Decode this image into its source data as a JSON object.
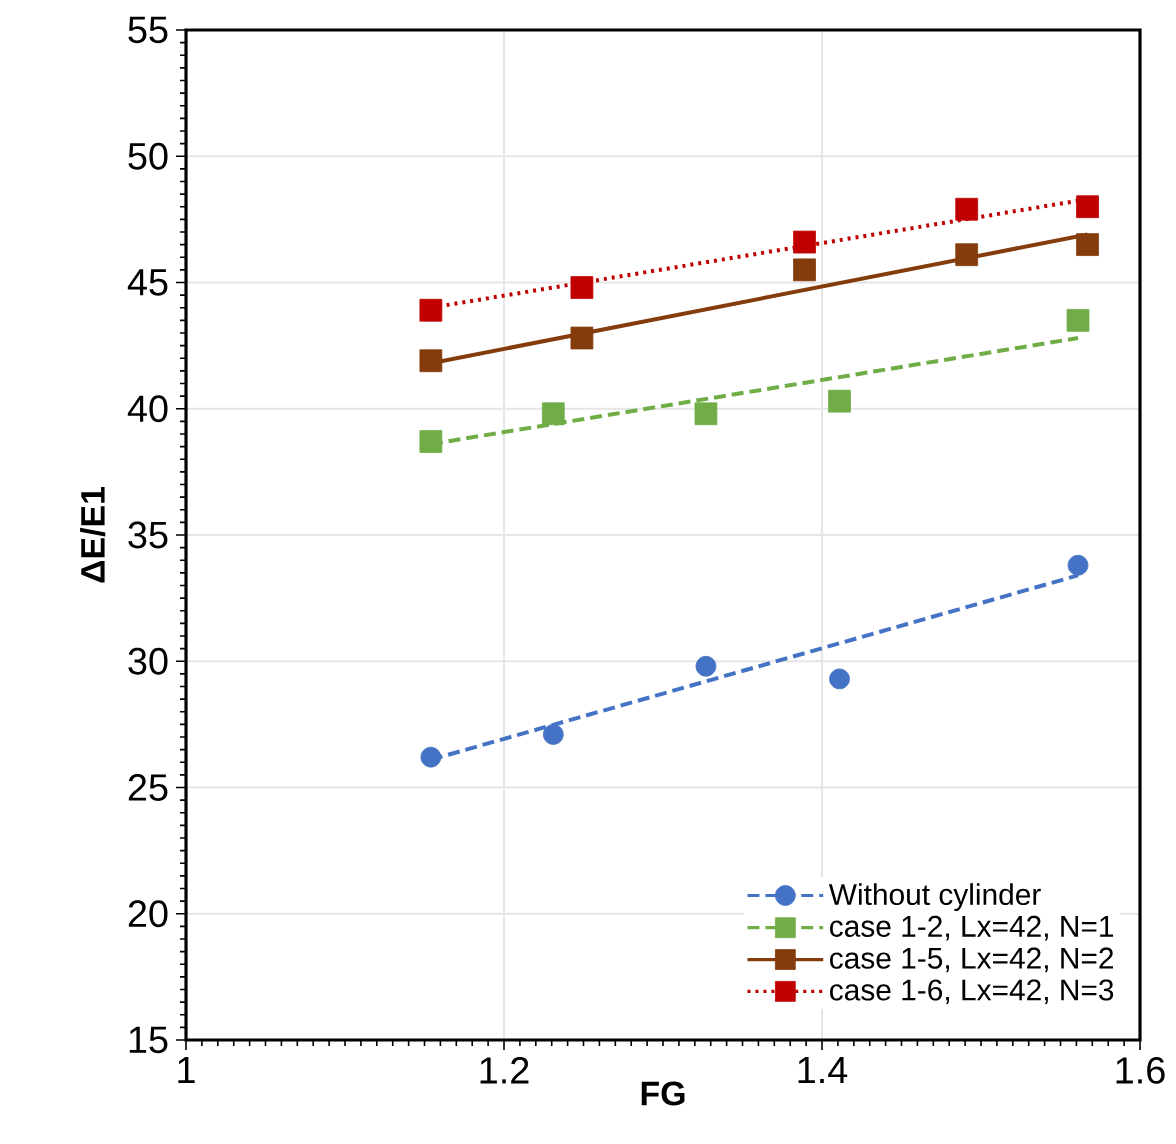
{
  "chart_data": {
    "type": "scatter",
    "xlabel": "FG",
    "ylabel": "ΔE/E1",
    "xlim": [
      1,
      1.6
    ],
    "xticks": [
      1,
      1.2,
      1.4,
      1.6
    ],
    "ylim": [
      15,
      55
    ],
    "yticks": [
      15,
      20,
      25,
      30,
      35,
      40,
      45,
      50,
      55
    ],
    "grid": true,
    "legend": "bottom right",
    "series": [
      {
        "name": "Without cylinder",
        "color": "#4472c4",
        "marker": "circle",
        "line_style": "dashed",
        "x": [
          1.154,
          1.231,
          1.327,
          1.411,
          1.561
        ],
        "values": [
          26.2,
          27.1,
          29.8,
          29.3,
          33.8
        ]
      },
      {
        "name": "case 1-2,  Lx=42,  N=1",
        "color": "#70ad47",
        "marker": "square",
        "line_style": "dashed",
        "x": [
          1.154,
          1.231,
          1.327,
          1.411,
          1.561
        ],
        "values": [
          38.7,
          39.8,
          39.8,
          40.3,
          43.5
        ]
      },
      {
        "name": "case 1-5,  Lx=42,  N=2",
        "color": "#843c0c",
        "marker": "square",
        "line_style": "solid",
        "x": [
          1.154,
          1.249,
          1.389,
          1.491,
          1.567
        ],
        "values": [
          41.9,
          42.8,
          45.5,
          46.1,
          46.5
        ]
      },
      {
        "name": "case 1-6, Lx=42,  N=3",
        "color": "#c00000",
        "marker": "square",
        "line_style": "dotted",
        "x": [
          1.154,
          1.249,
          1.389,
          1.491,
          1.567
        ],
        "values": [
          43.9,
          44.8,
          46.6,
          47.9,
          48.0
        ]
      },
      {
        "type": "line",
        "color": "#4472c4",
        "marker": "none",
        "line_style": "dashed",
        "x": [
          1.154,
          1.561
        ],
        "values": [
          26.1,
          33.4
        ]
      },
      {
        "type": "line",
        "color": "#70ad47",
        "marker": "none",
        "line_style": "dashed",
        "x": [
          1.154,
          1.561
        ],
        "values": [
          38.6,
          42.8
        ]
      },
      {
        "type": "line",
        "color": "#843c0c",
        "marker": "none",
        "line_style": "solid",
        "x": [
          1.154,
          1.567
        ],
        "values": [
          41.8,
          46.9
        ]
      },
      {
        "type": "line",
        "color": "#c00000",
        "marker": "none",
        "line_style": "dotted",
        "x": [
          1.154,
          1.567
        ],
        "values": [
          44.0,
          48.3
        ]
      }
    ]
  }
}
